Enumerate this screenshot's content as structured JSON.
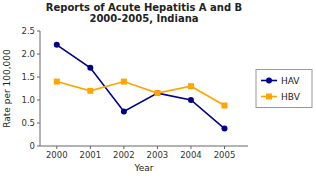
{
  "chart_data": {
    "type": "line",
    "title": "Reports of Acute Hepatitis A and B\n2000-2005, Indiana",
    "x_label": "Year",
    "y_label": "Rate per 100,000",
    "x": [
      2000,
      2001,
      2002,
      2003,
      2004,
      2005
    ],
    "series": [
      {
        "name": "HAV",
        "color": "#00008B",
        "marker": "circle",
        "values": [
          2.2,
          1.7,
          0.75,
          1.15,
          1.0,
          0.38
        ]
      },
      {
        "name": "HBV",
        "color": "#FFA500",
        "marker": "square",
        "values": [
          1.4,
          1.2,
          1.4,
          1.15,
          1.3,
          0.88
        ]
      }
    ],
    "xlim": [
      1999.5,
      2005.7
    ],
    "xticks": [
      2000,
      2001,
      2002,
      2003,
      2004,
      2005
    ],
    "ylim": [
      0,
      2.5
    ],
    "yticks": [
      0,
      0.5,
      {
        "value": 1.0,
        "label": "1.0"
      },
      1.5,
      {
        "value": 2.0,
        "label": "2.0"
      },
      2.5
    ],
    "grid": false,
    "legend": "right"
  }
}
